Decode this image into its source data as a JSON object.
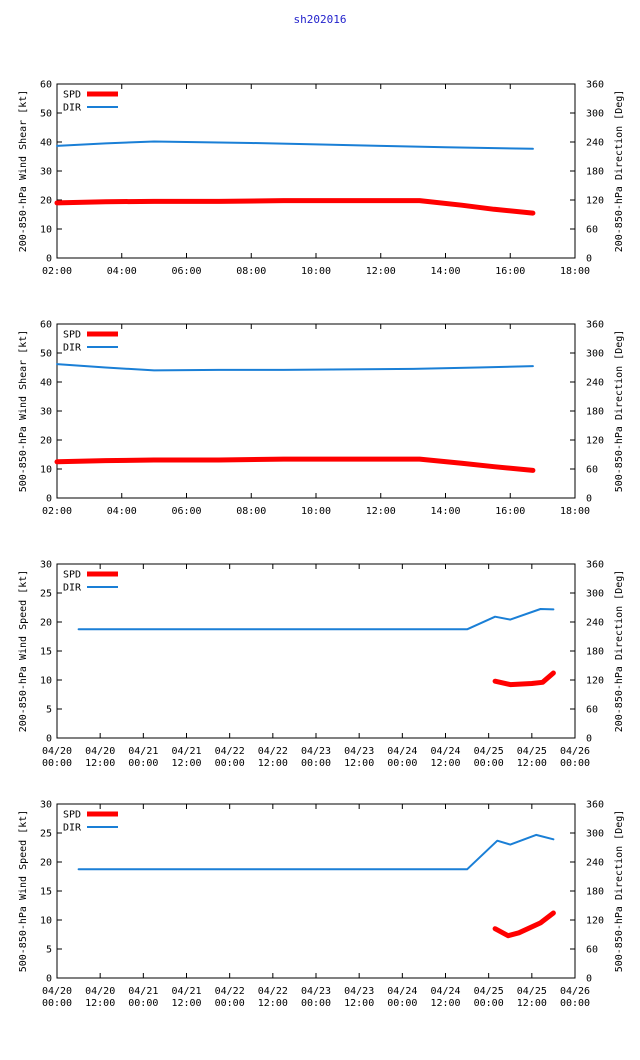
{
  "title": "sh202016",
  "colors": {
    "spd": "#ff0000",
    "dir": "#1a7fd6",
    "axis": "#000000"
  },
  "chart_data": [
    {
      "type": "line",
      "ylabel_left": "200-850-hPa Wind Shear [kt]",
      "ylabel_right": "200-850-hPa Direction [Deg]",
      "xlim": [
        2,
        18
      ],
      "ylim_left": [
        0,
        60
      ],
      "ylim_right": [
        0,
        360
      ],
      "yticks_left": [
        "0",
        "10",
        "20",
        "30",
        "40",
        "50",
        "60"
      ],
      "yticks_right": [
        "0",
        "60",
        "120",
        "180",
        "240",
        "300",
        "360"
      ],
      "xticks": [
        [
          "02:00"
        ],
        [
          "04:00"
        ],
        [
          "06:00"
        ],
        [
          "08:00"
        ],
        [
          "10:00"
        ],
        [
          "12:00"
        ],
        [
          "14:00"
        ],
        [
          "16:00"
        ],
        [
          "18:00"
        ]
      ],
      "legend": [
        "SPD",
        "DIR"
      ],
      "series": [
        {
          "name": "SPD",
          "axis": "left",
          "x": [
            2,
            3.5,
            5,
            7,
            9,
            11,
            13.2,
            14.5,
            15.5,
            16.7
          ],
          "values": [
            19,
            19.4,
            19.5,
            19.5,
            19.8,
            19.8,
            19.8,
            18.2,
            16.8,
            15.5
          ]
        },
        {
          "name": "DIR",
          "axis": "right",
          "x": [
            2,
            3.5,
            5,
            6,
            8,
            10,
            12,
            14,
            16.7
          ],
          "values": [
            232,
            237,
            241,
            240,
            238,
            235,
            232,
            229,
            226
          ]
        }
      ]
    },
    {
      "type": "line",
      "ylabel_left": "500-850-hPa Wind Shear [kt]",
      "ylabel_right": "500-850-hPa Direction [Deg]",
      "xlim": [
        2,
        18
      ],
      "ylim_left": [
        0,
        60
      ],
      "ylim_right": [
        0,
        360
      ],
      "yticks_left": [
        "0",
        "10",
        "20",
        "30",
        "40",
        "50",
        "60"
      ],
      "yticks_right": [
        "0",
        "60",
        "120",
        "180",
        "240",
        "300",
        "360"
      ],
      "xticks": [
        [
          "02:00"
        ],
        [
          "04:00"
        ],
        [
          "06:00"
        ],
        [
          "08:00"
        ],
        [
          "10:00"
        ],
        [
          "12:00"
        ],
        [
          "14:00"
        ],
        [
          "16:00"
        ],
        [
          "18:00"
        ]
      ],
      "legend": [
        "SPD",
        "DIR"
      ],
      "series": [
        {
          "name": "SPD",
          "axis": "left",
          "x": [
            2,
            3.5,
            5,
            7,
            9,
            11,
            13.2,
            14.5,
            15.5,
            16.7
          ],
          "values": [
            12.5,
            12.9,
            13.1,
            13.1,
            13.4,
            13.4,
            13.4,
            12,
            10.8,
            9.5
          ]
        },
        {
          "name": "DIR",
          "axis": "right",
          "x": [
            2,
            3.5,
            5,
            7,
            9,
            11,
            13,
            15,
            16.7
          ],
          "values": [
            277,
            270,
            264,
            265,
            265,
            266,
            267,
            270,
            273
          ]
        }
      ]
    },
    {
      "type": "line",
      "ylabel_left": "200-850-hPa Wind Speed [kt]",
      "ylabel_right": "200-850-hPa Direction [Deg]",
      "xlim": [
        0,
        12
      ],
      "ylim_left": [
        0,
        30
      ],
      "ylim_right": [
        0,
        360
      ],
      "yticks_left": [
        "0",
        "5",
        "10",
        "15",
        "20",
        "25",
        "30"
      ],
      "yticks_right": [
        "0",
        "60",
        "120",
        "180",
        "240",
        "300",
        "360"
      ],
      "xticks": [
        [
          "04/20",
          "00:00"
        ],
        [
          "04/20",
          "12:00"
        ],
        [
          "04/21",
          "00:00"
        ],
        [
          "04/21",
          "12:00"
        ],
        [
          "04/22",
          "00:00"
        ],
        [
          "04/22",
          "12:00"
        ],
        [
          "04/23",
          "00:00"
        ],
        [
          "04/23",
          "12:00"
        ],
        [
          "04/24",
          "00:00"
        ],
        [
          "04/24",
          "12:00"
        ],
        [
          "04/25",
          "00:00"
        ],
        [
          "04/25",
          "12:00"
        ],
        [
          "04/26",
          "00:00"
        ]
      ],
      "legend": [
        "SPD",
        "DIR"
      ],
      "series": [
        {
          "name": "SPD",
          "axis": "left",
          "x": [
            10.15,
            10.5,
            11,
            11.25,
            11.5
          ],
          "values": [
            9.8,
            9.2,
            9.4,
            9.6,
            11.2
          ]
        },
        {
          "name": "DIR",
          "axis": "right",
          "x": [
            0.5,
            9.5,
            10.15,
            10.5,
            11.2,
            11.5
          ],
          "values": [
            225,
            225,
            251,
            245,
            267,
            266
          ]
        }
      ]
    },
    {
      "type": "line",
      "ylabel_left": "500-850-hPa Wind Speed [kt]",
      "ylabel_right": "500-850-hPa Direction [Deg]",
      "xlim": [
        0,
        12
      ],
      "ylim_left": [
        0,
        30
      ],
      "ylim_right": [
        0,
        360
      ],
      "yticks_left": [
        "0",
        "5",
        "10",
        "15",
        "20",
        "25",
        "30"
      ],
      "yticks_right": [
        "0",
        "60",
        "120",
        "180",
        "240",
        "300",
        "360"
      ],
      "xticks": [
        [
          "04/20",
          "00:00"
        ],
        [
          "04/20",
          "12:00"
        ],
        [
          "04/21",
          "00:00"
        ],
        [
          "04/21",
          "12:00"
        ],
        [
          "04/22",
          "00:00"
        ],
        [
          "04/22",
          "12:00"
        ],
        [
          "04/23",
          "00:00"
        ],
        [
          "04/23",
          "12:00"
        ],
        [
          "04/24",
          "00:00"
        ],
        [
          "04/24",
          "12:00"
        ],
        [
          "04/25",
          "00:00"
        ],
        [
          "04/25",
          "12:00"
        ],
        [
          "04/26",
          "00:00"
        ]
      ],
      "legend": [
        "SPD",
        "DIR"
      ],
      "series": [
        {
          "name": "SPD",
          "axis": "left",
          "x": [
            10.15,
            10.45,
            10.7,
            11.2,
            11.5
          ],
          "values": [
            8.5,
            7.3,
            7.8,
            9.5,
            11.2
          ]
        },
        {
          "name": "DIR",
          "axis": "right",
          "x": [
            0.5,
            9.5,
            10.2,
            10.5,
            11.1,
            11.5
          ],
          "values": [
            225,
            225,
            284,
            276,
            296,
            287
          ]
        }
      ]
    }
  ]
}
